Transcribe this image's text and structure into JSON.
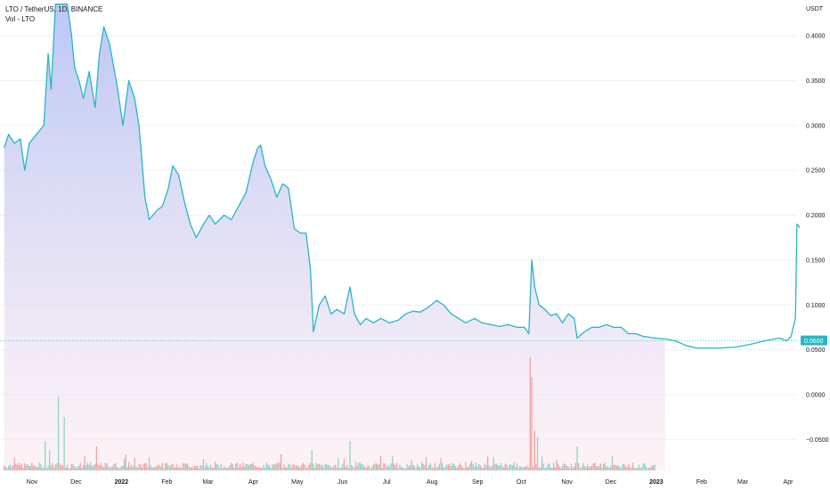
{
  "header": {
    "symbol_line": "LTO / TetherUS, 1D, BINANCE",
    "volume_line": "Vol - LTO"
  },
  "colors": {
    "line": "#26b6c8",
    "area_top": "#b7c4f5",
    "area_bottom": "#fbe8ef",
    "vol_up": "#8fd3c7",
    "vol_down": "#f3a3a3",
    "last_price_bg": "#26b6c8",
    "grid": "#eef0f3"
  },
  "chart_data": {
    "type": "line",
    "symbol": "LTO / TetherUS",
    "interval": "1D",
    "exchange": "BINANCE",
    "currency": "USDT",
    "last_price": "0.0600",
    "y_ticks": [
      "0.4000",
      "0.3500",
      "0.3000",
      "0.2500",
      "0.2000",
      "0.1500",
      "0.1000",
      "0.0500",
      "0.0000",
      "−0.0500"
    ],
    "y_tick_values": [
      0.4,
      0.35,
      0.3,
      0.25,
      0.2,
      0.15,
      0.1,
      0.05,
      0.0,
      -0.05
    ],
    "ylim": [
      -0.067,
      0.435
    ],
    "x_ticks": [
      {
        "label": "Nov",
        "date": "2021-11-01",
        "bold": false
      },
      {
        "label": "Dec",
        "date": "2021-12-01",
        "bold": false
      },
      {
        "label": "2022",
        "date": "2022-01-01",
        "bold": true
      },
      {
        "label": "Feb",
        "date": "2022-02-01",
        "bold": false
      },
      {
        "label": "Mar",
        "date": "2022-03-01",
        "bold": false
      },
      {
        "label": "Apr",
        "date": "2022-04-01",
        "bold": false
      },
      {
        "label": "May",
        "date": "2022-05-01",
        "bold": false
      },
      {
        "label": "Jun",
        "date": "2022-06-01",
        "bold": false
      },
      {
        "label": "Jul",
        "date": "2022-07-01",
        "bold": false
      },
      {
        "label": "Aug",
        "date": "2022-08-01",
        "bold": false
      },
      {
        "label": "Sep",
        "date": "2022-09-01",
        "bold": false
      },
      {
        "label": "Oct",
        "date": "2022-10-01",
        "bold": false
      },
      {
        "label": "Nov",
        "date": "2022-11-01",
        "bold": false
      },
      {
        "label": "Dec",
        "date": "2022-12-01",
        "bold": false
      },
      {
        "label": "2023",
        "date": "2023-01-01",
        "bold": true
      },
      {
        "label": "Feb",
        "date": "2023-02-01",
        "bold": false
      },
      {
        "label": "Mar",
        "date": "2023-03-01",
        "bold": false
      },
      {
        "label": "Apr",
        "date": "2023-04-01",
        "bold": false
      }
    ],
    "price_series": {
      "name": "LTO",
      "points": [
        [
          "2021-10-13",
          0.275
        ],
        [
          "2021-10-16",
          0.29
        ],
        [
          "2021-10-20",
          0.28
        ],
        [
          "2021-10-24",
          0.285
        ],
        [
          "2021-10-27",
          0.25
        ],
        [
          "2021-10-30",
          0.28
        ],
        [
          "2021-11-04",
          0.29
        ],
        [
          "2021-11-09",
          0.3
        ],
        [
          "2021-11-12",
          0.38
        ],
        [
          "2021-11-14",
          0.34
        ],
        [
          "2021-11-17",
          0.435
        ],
        [
          "2021-11-21",
          0.435
        ],
        [
          "2021-11-25",
          0.435
        ],
        [
          "2021-11-28",
          0.4
        ],
        [
          "2021-11-30",
          0.365
        ],
        [
          "2021-12-03",
          0.35
        ],
        [
          "2021-12-06",
          0.33
        ],
        [
          "2021-12-10",
          0.36
        ],
        [
          "2021-12-14",
          0.32
        ],
        [
          "2021-12-17",
          0.38
        ],
        [
          "2021-12-20",
          0.41
        ],
        [
          "2021-12-24",
          0.39
        ],
        [
          "2021-12-29",
          0.345
        ],
        [
          "2022-01-02",
          0.3
        ],
        [
          "2022-01-06",
          0.35
        ],
        [
          "2022-01-10",
          0.33
        ],
        [
          "2022-01-13",
          0.3
        ],
        [
          "2022-01-17",
          0.22
        ],
        [
          "2022-01-20",
          0.195
        ],
        [
          "2022-01-25",
          0.205
        ],
        [
          "2022-01-29",
          0.21
        ],
        [
          "2022-02-02",
          0.23
        ],
        [
          "2022-02-05",
          0.255
        ],
        [
          "2022-02-09",
          0.245
        ],
        [
          "2022-02-13",
          0.215
        ],
        [
          "2022-02-17",
          0.19
        ],
        [
          "2022-02-21",
          0.175
        ],
        [
          "2022-02-26",
          0.19
        ],
        [
          "2022-03-02",
          0.2
        ],
        [
          "2022-03-06",
          0.19
        ],
        [
          "2022-03-12",
          0.2
        ],
        [
          "2022-03-17",
          0.195
        ],
        [
          "2022-03-22",
          0.21
        ],
        [
          "2022-03-27",
          0.225
        ],
        [
          "2022-04-01",
          0.26
        ],
        [
          "2022-04-04",
          0.275
        ],
        [
          "2022-04-06",
          0.278
        ],
        [
          "2022-04-09",
          0.255
        ],
        [
          "2022-04-13",
          0.24
        ],
        [
          "2022-04-17",
          0.22
        ],
        [
          "2022-04-21",
          0.235
        ],
        [
          "2022-04-25",
          0.23
        ],
        [
          "2022-04-29",
          0.185
        ],
        [
          "2022-05-03",
          0.18
        ],
        [
          "2022-05-07",
          0.18
        ],
        [
          "2022-05-10",
          0.14
        ],
        [
          "2022-05-12",
          0.07
        ],
        [
          "2022-05-16",
          0.1
        ],
        [
          "2022-05-20",
          0.11
        ],
        [
          "2022-05-24",
          0.09
        ],
        [
          "2022-05-28",
          0.095
        ],
        [
          "2022-06-02",
          0.09
        ],
        [
          "2022-06-06",
          0.12
        ],
        [
          "2022-06-09",
          0.09
        ],
        [
          "2022-06-13",
          0.078
        ],
        [
          "2022-06-17",
          0.085
        ],
        [
          "2022-06-22",
          0.08
        ],
        [
          "2022-06-27",
          0.085
        ],
        [
          "2022-07-03",
          0.08
        ],
        [
          "2022-07-09",
          0.083
        ],
        [
          "2022-07-14",
          0.09
        ],
        [
          "2022-07-19",
          0.093
        ],
        [
          "2022-07-24",
          0.092
        ],
        [
          "2022-07-30",
          0.098
        ],
        [
          "2022-08-04",
          0.105
        ],
        [
          "2022-08-09",
          0.1
        ],
        [
          "2022-08-14",
          0.09
        ],
        [
          "2022-08-19",
          0.085
        ],
        [
          "2022-08-24",
          0.08
        ],
        [
          "2022-08-30",
          0.085
        ],
        [
          "2022-09-04",
          0.08
        ],
        [
          "2022-09-10",
          0.078
        ],
        [
          "2022-09-16",
          0.076
        ],
        [
          "2022-09-22",
          0.078
        ],
        [
          "2022-09-28",
          0.075
        ],
        [
          "2022-10-03",
          0.075
        ],
        [
          "2022-10-06",
          0.068
        ],
        [
          "2022-10-08",
          0.15
        ],
        [
          "2022-10-10",
          0.12
        ],
        [
          "2022-10-13",
          0.1
        ],
        [
          "2022-10-17",
          0.095
        ],
        [
          "2022-10-21",
          0.088
        ],
        [
          "2022-10-25",
          0.09
        ],
        [
          "2022-10-29",
          0.08
        ],
        [
          "2022-11-02",
          0.09
        ],
        [
          "2022-11-06",
          0.085
        ],
        [
          "2022-11-08",
          0.063
        ],
        [
          "2022-11-13",
          0.07
        ],
        [
          "2022-11-18",
          0.075
        ],
        [
          "2022-11-23",
          0.075
        ],
        [
          "2022-11-28",
          0.078
        ],
        [
          "2022-12-03",
          0.075
        ],
        [
          "2022-12-08",
          0.075
        ],
        [
          "2022-12-13",
          0.068
        ],
        [
          "2022-12-18",
          0.068
        ],
        [
          "2022-12-23",
          0.065
        ],
        [
          "2022-12-31",
          0.063
        ],
        [
          "2023-01-07",
          0.062
        ]
      ]
    },
    "projection_series": {
      "points": [
        [
          "2023-01-07",
          0.062
        ],
        [
          "2023-01-14",
          0.06
        ],
        [
          "2023-01-21",
          0.055
        ],
        [
          "2023-01-28",
          0.052
        ],
        [
          "2023-02-05",
          0.052
        ],
        [
          "2023-02-14",
          0.052
        ],
        [
          "2023-02-24",
          0.053
        ],
        [
          "2023-03-06",
          0.056
        ],
        [
          "2023-03-16",
          0.06
        ],
        [
          "2023-03-26",
          0.063
        ],
        [
          "2023-03-31",
          0.06
        ],
        [
          "2023-04-03",
          0.065
        ],
        [
          "2023-04-06",
          0.085
        ],
        [
          "2023-04-07",
          0.19
        ],
        [
          "2023-04-09",
          0.186
        ]
      ]
    },
    "volume_series": {
      "name": "Vol - LTO",
      "start_date": "2021-10-13",
      "end_date": "2022-12-31",
      "spikes": [
        {
          "date": "2021-11-10",
          "value": 0.022
        },
        {
          "date": "2021-11-13",
          "value": 0.015
        },
        {
          "date": "2021-11-19",
          "value": 0.055
        },
        {
          "date": "2021-11-23",
          "value": 0.04
        },
        {
          "date": "2021-12-15",
          "value": 0.018
        },
        {
          "date": "2022-01-04",
          "value": 0.012
        },
        {
          "date": "2022-05-11",
          "value": 0.015
        },
        {
          "date": "2022-06-06",
          "value": 0.022
        },
        {
          "date": "2022-07-28",
          "value": 0.01
        },
        {
          "date": "2022-10-07",
          "value": 0.085
        },
        {
          "date": "2022-10-08",
          "value": 0.07
        },
        {
          "date": "2022-10-10",
          "value": 0.03
        },
        {
          "date": "2022-10-12",
          "value": 0.025
        },
        {
          "date": "2022-11-08",
          "value": 0.018
        }
      ]
    }
  }
}
